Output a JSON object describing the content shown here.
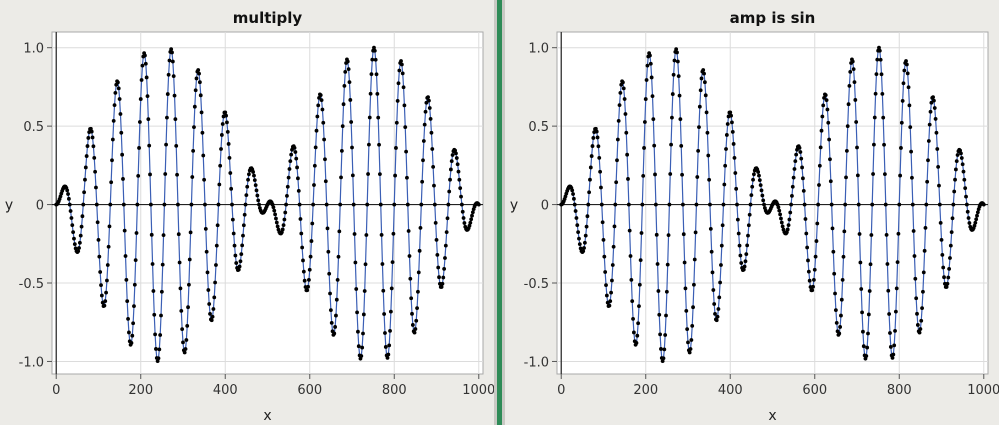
{
  "chart_data": [
    {
      "type": "scatter",
      "title": "multiply",
      "xlabel": "x",
      "ylabel": "y",
      "xlim": [
        -10,
        1010
      ],
      "ylim": [
        -1.08,
        1.1
      ],
      "xticks": [
        0,
        200,
        400,
        600,
        800,
        1000
      ],
      "xtick_labels": [
        "0",
        "200",
        "400",
        "600",
        "800",
        "1000"
      ],
      "yticks": [
        -1.0,
        -0.5,
        0,
        0.5,
        1.0
      ],
      "ytick_labels": [
        "-1.0",
        "-0.5",
        "0",
        "0.5",
        "1.0"
      ],
      "grid": true,
      "series": [
        {
          "function": "sin(x*pi/500) * sin(x*pi/32)",
          "x_start": 0,
          "x_end": 1000,
          "x_step": 2,
          "point_color": "#000000",
          "line_color": "#3b5fb5"
        }
      ]
    },
    {
      "type": "scatter",
      "title": "amp is sin",
      "xlabel": "x",
      "ylabel": "y",
      "xlim": [
        -10,
        1010
      ],
      "ylim": [
        -1.08,
        1.1
      ],
      "xticks": [
        0,
        200,
        400,
        600,
        800,
        1000
      ],
      "xtick_labels": [
        "0",
        "200",
        "400",
        "600",
        "800",
        "1000"
      ],
      "yticks": [
        -1.0,
        -0.5,
        0,
        0.5,
        1.0
      ],
      "ytick_labels": [
        "-1.0",
        "-0.5",
        "0",
        "0.5",
        "1.0"
      ],
      "grid": true,
      "series": [
        {
          "function": "sin(x*pi/500) * sin(x*pi/32)",
          "x_start": 0,
          "x_end": 1000,
          "x_step": 2,
          "point_color": "#000000",
          "line_color": "#3b5fb5"
        }
      ]
    }
  ],
  "colors": {
    "divider": "#2e8b57",
    "background": "#ecebe7"
  }
}
